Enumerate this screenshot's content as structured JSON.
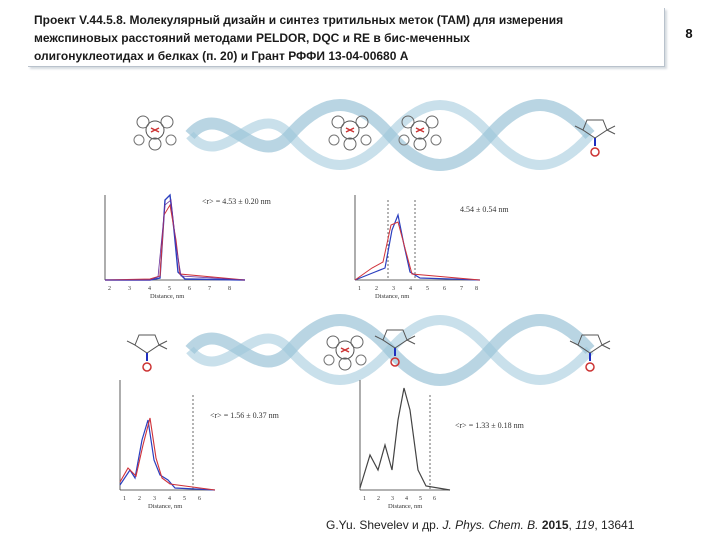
{
  "header": {
    "title_lines": [
      "Проект V.44.5.8. Молекулярный дизайн и синтез тритильных меток (ТАМ) для измерения",
      "межспиновых расстояний методами PELDOR, DQC и RE в бис-меченных",
      "олигонуклеотидах и белках (п. 20) и  Грант РФФИ 13-04-00680 А"
    ]
  },
  "page_number": "8",
  "panels": [
    {
      "name": "top-left",
      "r_text": "<r> = 4.53 ± 0.20 nm",
      "xlabel": "Distance, nm",
      "ticks": [
        "2",
        "3",
        "4",
        "5",
        "6",
        "7",
        "8"
      ]
    },
    {
      "name": "top-right",
      "r_text": "4.54 ± 0.54 nm",
      "xlabel": "Distance, nm",
      "ticks": [
        "1",
        "2",
        "3",
        "4",
        "5",
        "6",
        "7",
        "8"
      ]
    },
    {
      "name": "bottom-left",
      "r_text": "<r> = 1.56 ± 0.37 nm",
      "xlabel": "Distance, nm",
      "ticks": [
        "1",
        "2",
        "3",
        "4",
        "5",
        "6"
      ]
    },
    {
      "name": "bottom-right",
      "r_text": "<r> = 1.33 ± 0.18 nm",
      "xlabel": "Distance, nm",
      "ticks": [
        "1",
        "2",
        "3",
        "4",
        "5",
        "6"
      ]
    }
  ],
  "citation": {
    "authors": "G.Yu. Shevelev и др.",
    "journal": "J. Phys. Chem. B.",
    "year": "2015",
    "volume": "119",
    "pages": "13641"
  },
  "colors": {
    "blue": "#2b3fbf",
    "red": "#d0323a",
    "dna": "#7fb2cc",
    "dashed": "#444444",
    "label_red": "#d0323a"
  }
}
